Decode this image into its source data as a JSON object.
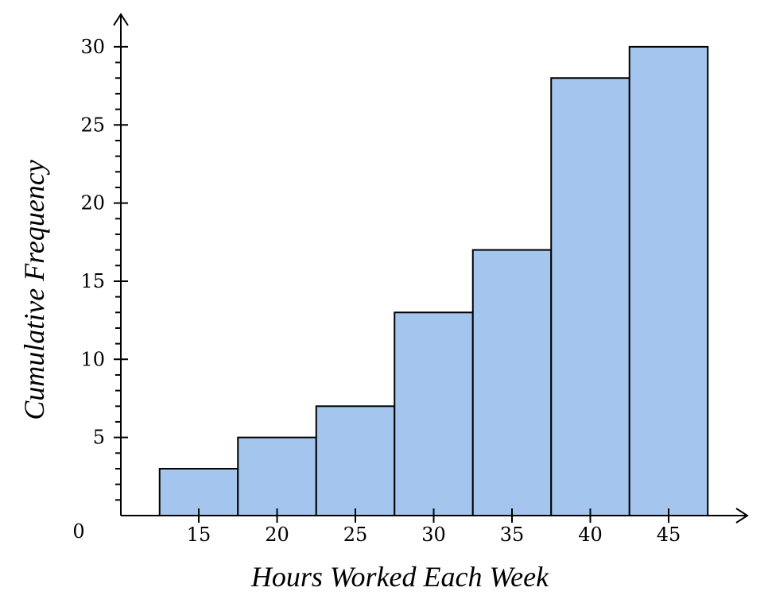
{
  "chart_data": {
    "type": "bar",
    "title": "",
    "xlabel": "Hours Worked Each Week",
    "ylabel": "Cumulative Frequency",
    "origin_label": "0",
    "categories": [
      "15",
      "20",
      "25",
      "30",
      "35",
      "40",
      "45"
    ],
    "values": [
      3,
      5,
      7,
      13,
      17,
      28,
      30
    ],
    "bin_width": 5,
    "xlim": [
      10,
      50
    ],
    "ylim": [
      0,
      30
    ],
    "y_ticks": [
      "5",
      "10",
      "15",
      "20",
      "25",
      "30"
    ],
    "y_minor_step": 1,
    "grid": false,
    "bar_color": "#a4c6ee",
    "edge_color": "#000000"
  }
}
